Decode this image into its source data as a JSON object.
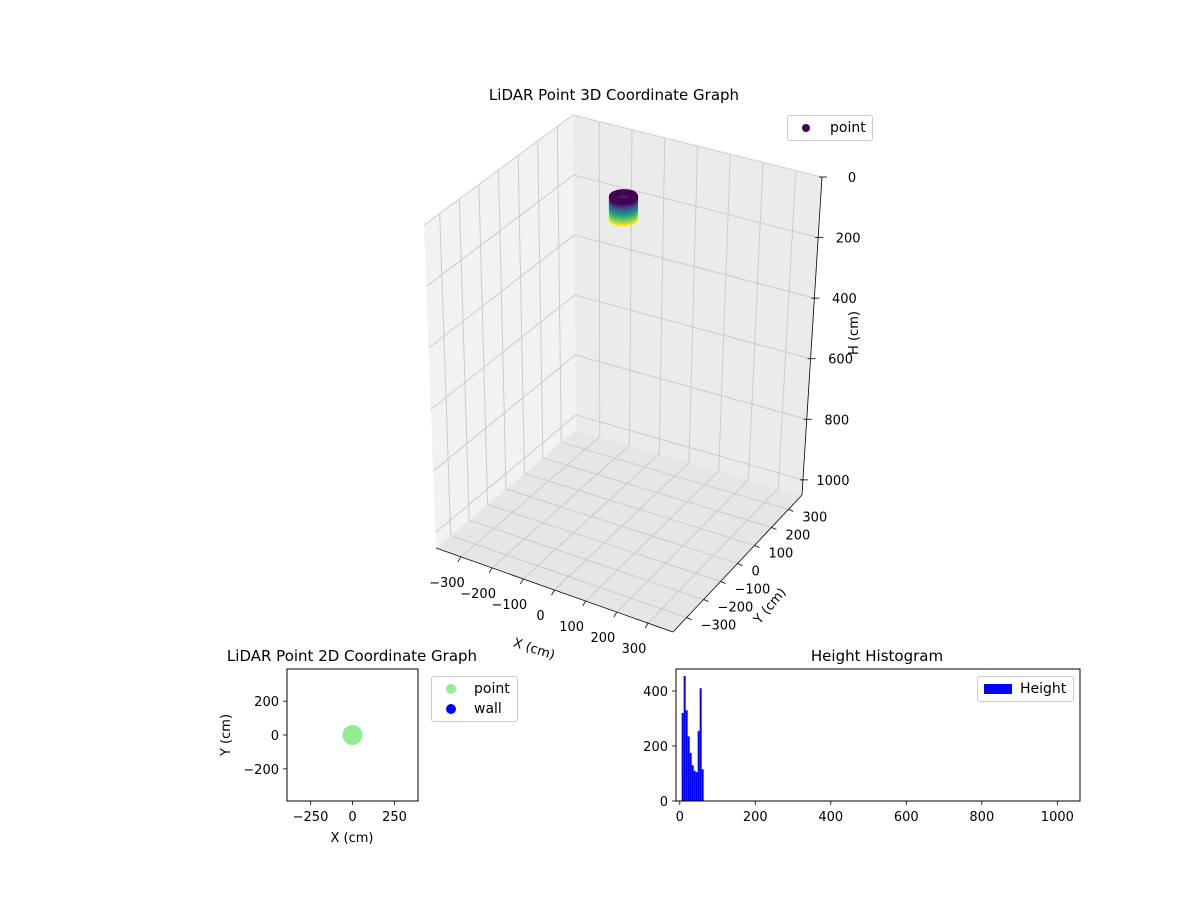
{
  "colors": {
    "pane": "#f2f2f2",
    "grid": "#c8c8c8",
    "point_2d": "#90ee90",
    "wall_2d": "#0000ff",
    "histogram": "#0000ff",
    "viridis": [
      "#440154",
      "#3b528b",
      "#21918c",
      "#5ec962",
      "#fde725"
    ]
  },
  "chart_data": [
    {
      "type": "scatter3d",
      "title": "LiDAR Point 3D Coordinate Graph",
      "xlabel": "X (cm)",
      "ylabel": "Y (cm)",
      "zlabel": "H (cm)",
      "xlim": [
        -380,
        380
      ],
      "ylim": [
        -380,
        380
      ],
      "zlim": [
        1050,
        0
      ],
      "z_inverted": true,
      "x_ticks": [
        "−300",
        "−200",
        "−100",
        "0",
        "100",
        "200",
        "300"
      ],
      "y_ticks": [
        "−300",
        "−200",
        "−100",
        "0",
        "100",
        "200",
        "300"
      ],
      "z_ticks": [
        "0",
        "200",
        "400",
        "600",
        "800",
        "1000"
      ],
      "legend": [
        "point"
      ],
      "legend_position": "top-right",
      "grid": true,
      "colormap": "viridis",
      "series": [
        {
          "name": "point",
          "shape": "ring",
          "center_x": 0,
          "center_y": 0,
          "radius": 30,
          "height_min": 0,
          "height_max": 70
        }
      ]
    },
    {
      "type": "scatter",
      "title": "LiDAR Point 2D Coordinate Graph",
      "xlabel": "X (cm)",
      "ylabel": "Y (cm)",
      "xlim": [
        -390,
        390
      ],
      "ylim": [
        -390,
        390
      ],
      "x_ticks": [
        "−250",
        "0",
        "250"
      ],
      "y_ticks": [
        "−200",
        "0",
        "200"
      ],
      "legend": [
        "point",
        "wall"
      ],
      "legend_position": "outside-right",
      "grid": false,
      "series": [
        {
          "name": "point",
          "shape": "disc",
          "center_x": 0,
          "center_y": 0,
          "radius": 30
        },
        {
          "name": "wall",
          "points": []
        }
      ]
    },
    {
      "type": "histogram",
      "title": "Height Histogram",
      "xlabel": "",
      "ylabel": "",
      "xlim": [
        -10,
        1060
      ],
      "ylim": [
        0,
        480
      ],
      "x_ticks": [
        "0",
        "200",
        "400",
        "600",
        "800",
        "1000"
      ],
      "y_ticks": [
        "0",
        "200",
        "400"
      ],
      "legend": [
        "Height"
      ],
      "legend_position": "top-right",
      "series": [
        {
          "name": "Height",
          "bin_width": 5.3,
          "bins": [
            {
              "x0": 5,
              "count": 320
            },
            {
              "x0": 10.3,
              "count": 455
            },
            {
              "x0": 15.6,
              "count": 330
            },
            {
              "x0": 20.9,
              "count": 235
            },
            {
              "x0": 26.2,
              "count": 175
            },
            {
              "x0": 31.5,
              "count": 130
            },
            {
              "x0": 36.8,
              "count": 110
            },
            {
              "x0": 42.1,
              "count": 105
            },
            {
              "x0": 47.4,
              "count": 255
            },
            {
              "x0": 52.7,
              "count": 410
            },
            {
              "x0": 58,
              "count": 115
            }
          ]
        }
      ]
    }
  ]
}
